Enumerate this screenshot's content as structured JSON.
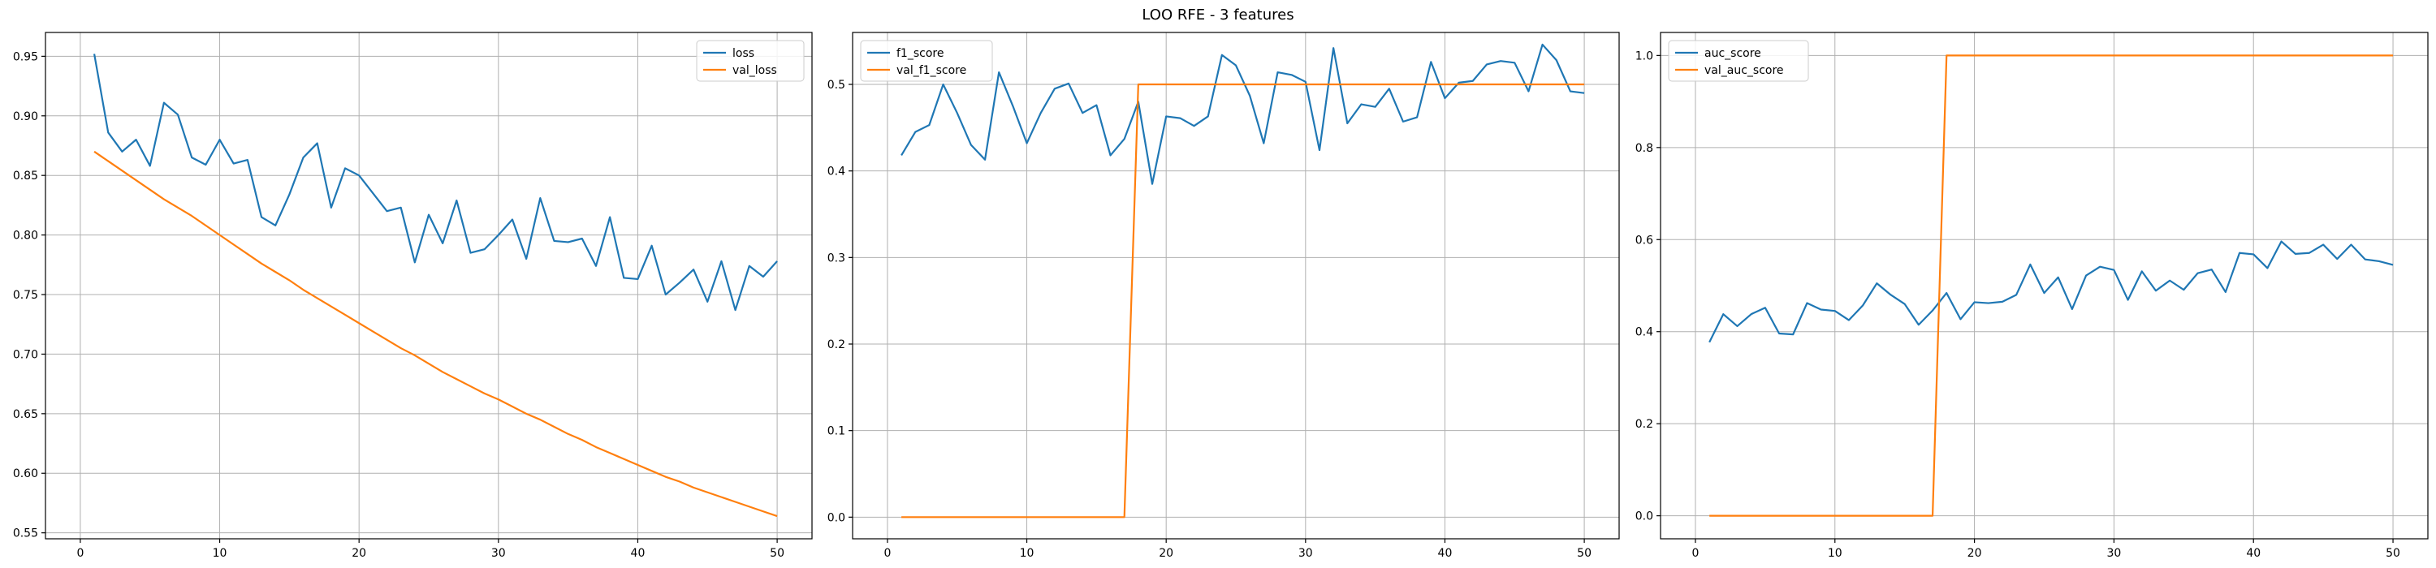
{
  "figure": {
    "title": "LOO RFE - 3 features"
  },
  "colors": {
    "series1": "#1f77b4",
    "series2": "#ff7f0e",
    "grid": "#b0b0b0"
  },
  "chart_data": [
    {
      "type": "line",
      "title": "",
      "xlabel": "",
      "ylabel": "",
      "xlim": [
        -2.5,
        52.5
      ],
      "ylim": [
        0.545,
        0.97
      ],
      "xticks": [
        0,
        10,
        20,
        30,
        40,
        50
      ],
      "yticks": [
        0.55,
        0.6,
        0.65,
        0.7,
        0.75,
        0.8,
        0.85,
        0.9,
        0.95
      ],
      "ytick_labels": [
        "0.55",
        "0.60",
        "0.65",
        "0.70",
        "0.75",
        "0.80",
        "0.85",
        "0.90",
        "0.95"
      ],
      "grid": true,
      "legend_position": "top-right",
      "x": [
        1,
        2,
        3,
        4,
        5,
        6,
        7,
        8,
        9,
        10,
        11,
        12,
        13,
        14,
        15,
        16,
        17,
        18,
        19,
        20,
        21,
        22,
        23,
        24,
        25,
        26,
        27,
        28,
        29,
        30,
        31,
        32,
        33,
        34,
        35,
        36,
        37,
        38,
        39,
        40,
        41,
        42,
        43,
        44,
        45,
        46,
        47,
        48,
        49,
        50
      ],
      "series": [
        {
          "name": "loss",
          "values": [
            0.952,
            0.886,
            0.87,
            0.88,
            0.858,
            0.911,
            0.901,
            0.865,
            0.859,
            0.88,
            0.86,
            0.863,
            0.815,
            0.808,
            0.834,
            0.865,
            0.877,
            0.823,
            0.856,
            0.85,
            0.835,
            0.82,
            0.823,
            0.777,
            0.817,
            0.793,
            0.829,
            0.785,
            0.788,
            0.8,
            0.813,
            0.78,
            0.831,
            0.795,
            0.794,
            0.797,
            0.774,
            0.815,
            0.764,
            0.763,
            0.791,
            0.75,
            0.76,
            0.771,
            0.744,
            0.778,
            0.737,
            0.774,
            0.765,
            0.778
          ]
        },
        {
          "name": "val_loss",
          "values": [
            0.87,
            0.862,
            0.854,
            0.846,
            0.838,
            0.83,
            0.823,
            0.816,
            0.808,
            0.8,
            0.792,
            0.784,
            0.776,
            0.769,
            0.762,
            0.754,
            0.747,
            0.74,
            0.733,
            0.726,
            0.719,
            0.712,
            0.705,
            0.699,
            0.692,
            0.685,
            0.679,
            0.673,
            0.667,
            0.662,
            0.656,
            0.65,
            0.645,
            0.639,
            0.633,
            0.628,
            0.622,
            0.617,
            0.612,
            0.607,
            0.602,
            0.597,
            0.593,
            0.588,
            0.584,
            0.58,
            0.576,
            0.572,
            0.568,
            0.564
          ]
        }
      ]
    },
    {
      "type": "line",
      "title": "",
      "xlabel": "",
      "ylabel": "",
      "xlim": [
        -2.5,
        52.5
      ],
      "ylim": [
        -0.025,
        0.56
      ],
      "xticks": [
        0,
        10,
        20,
        30,
        40,
        50
      ],
      "yticks": [
        0.0,
        0.1,
        0.2,
        0.3,
        0.4,
        0.5
      ],
      "ytick_labels": [
        "0.0",
        "0.1",
        "0.2",
        "0.3",
        "0.4",
        "0.5"
      ],
      "grid": true,
      "legend_position": "top-left",
      "x": [
        1,
        2,
        3,
        4,
        5,
        6,
        7,
        8,
        9,
        10,
        11,
        12,
        13,
        14,
        15,
        16,
        17,
        18,
        19,
        20,
        21,
        22,
        23,
        24,
        25,
        26,
        27,
        28,
        29,
        30,
        31,
        32,
        33,
        34,
        35,
        36,
        37,
        38,
        39,
        40,
        41,
        42,
        43,
        44,
        45,
        46,
        47,
        48,
        49,
        50
      ],
      "series": [
        {
          "name": "f1_score",
          "values": [
            0.418,
            0.445,
            0.453,
            0.5,
            0.467,
            0.43,
            0.413,
            0.514,
            0.475,
            0.432,
            0.467,
            0.495,
            0.501,
            0.467,
            0.476,
            0.418,
            0.437,
            0.48,
            0.385,
            0.463,
            0.461,
            0.452,
            0.463,
            0.534,
            0.522,
            0.487,
            0.432,
            0.514,
            0.511,
            0.503,
            0.424,
            0.542,
            0.455,
            0.477,
            0.474,
            0.495,
            0.457,
            0.462,
            0.526,
            0.484,
            0.502,
            0.504,
            0.523,
            0.527,
            0.525,
            0.492,
            0.546,
            0.528,
            0.492,
            0.49
          ]
        },
        {
          "name": "val_f1_score",
          "values": [
            0,
            0,
            0,
            0,
            0,
            0,
            0,
            0,
            0,
            0,
            0,
            0,
            0,
            0,
            0,
            0,
            0,
            0.5,
            0.5,
            0.5,
            0.5,
            0.5,
            0.5,
            0.5,
            0.5,
            0.5,
            0.5,
            0.5,
            0.5,
            0.5,
            0.5,
            0.5,
            0.5,
            0.5,
            0.5,
            0.5,
            0.5,
            0.5,
            0.5,
            0.5,
            0.5,
            0.5,
            0.5,
            0.5,
            0.5,
            0.5,
            0.5,
            0.5,
            0.5,
            0.5
          ]
        }
      ]
    },
    {
      "type": "line",
      "title": "",
      "xlabel": "",
      "ylabel": "",
      "xlim": [
        -2.5,
        52.5
      ],
      "ylim": [
        -0.05,
        1.05
      ],
      "xticks": [
        0,
        10,
        20,
        30,
        40,
        50
      ],
      "yticks": [
        0.0,
        0.2,
        0.4,
        0.6,
        0.8,
        1.0
      ],
      "ytick_labels": [
        "0.0",
        "0.2",
        "0.4",
        "0.6",
        "0.8",
        "1.0"
      ],
      "grid": true,
      "legend_position": "top-left",
      "x": [
        1,
        2,
        3,
        4,
        5,
        6,
        7,
        8,
        9,
        10,
        11,
        12,
        13,
        14,
        15,
        16,
        17,
        18,
        19,
        20,
        21,
        22,
        23,
        24,
        25,
        26,
        27,
        28,
        29,
        30,
        31,
        32,
        33,
        34,
        35,
        36,
        37,
        38,
        39,
        40,
        41,
        42,
        43,
        44,
        45,
        46,
        47,
        48,
        49,
        50
      ],
      "series": [
        {
          "name": "auc_score",
          "values": [
            0.377,
            0.438,
            0.412,
            0.438,
            0.452,
            0.396,
            0.394,
            0.462,
            0.448,
            0.445,
            0.425,
            0.457,
            0.505,
            0.48,
            0.46,
            0.415,
            0.446,
            0.484,
            0.427,
            0.464,
            0.462,
            0.465,
            0.48,
            0.546,
            0.484,
            0.518,
            0.449,
            0.522,
            0.541,
            0.534,
            0.469,
            0.531,
            0.489,
            0.511,
            0.491,
            0.527,
            0.535,
            0.486,
            0.571,
            0.568,
            0.538,
            0.596,
            0.569,
            0.571,
            0.589,
            0.558,
            0.589,
            0.557,
            0.553,
            0.545
          ]
        },
        {
          "name": "val_auc_score",
          "values": [
            0,
            0,
            0,
            0,
            0,
            0,
            0,
            0,
            0,
            0,
            0,
            0,
            0,
            0,
            0,
            0,
            0,
            1,
            1,
            1,
            1,
            1,
            1,
            1,
            1,
            1,
            1,
            1,
            1,
            1,
            1,
            1,
            1,
            1,
            1,
            1,
            1,
            1,
            1,
            1,
            1,
            1,
            1,
            1,
            1,
            1,
            1,
            1,
            1,
            1
          ]
        }
      ]
    }
  ]
}
